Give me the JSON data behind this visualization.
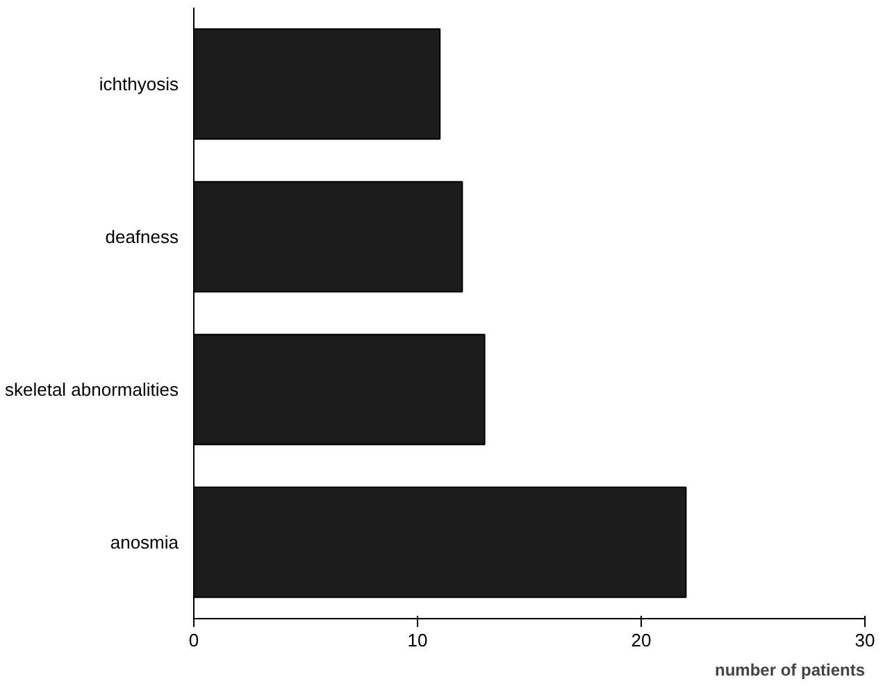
{
  "chart_data": {
    "type": "bar",
    "orientation": "horizontal",
    "categories": [
      "ichthyosis",
      "deafness",
      "skeletal abnormalities",
      "anosmia"
    ],
    "values": [
      11,
      12,
      13,
      22
    ],
    "color": "#1c1c1c",
    "xlim": [
      0,
      30
    ],
    "xticks": [
      0,
      10,
      20,
      30
    ],
    "xlabel": "number of patients",
    "grid": false
  }
}
